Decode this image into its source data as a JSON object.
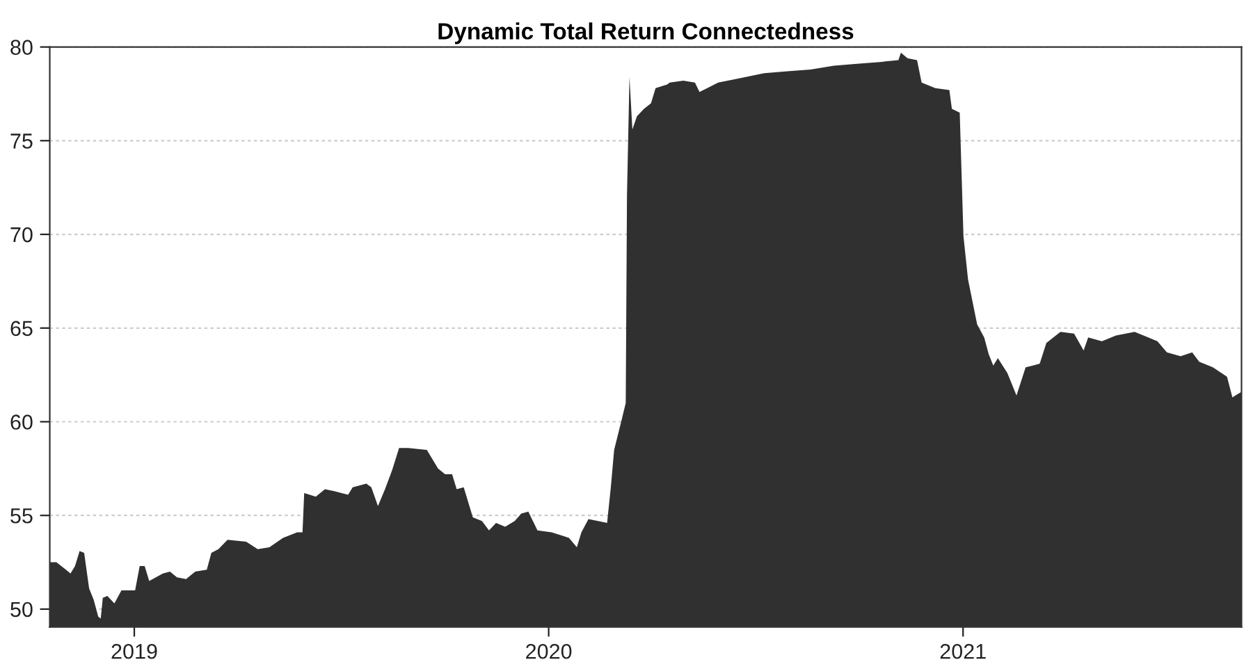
{
  "chart_data": {
    "type": "area",
    "title": "Dynamic Total Return Connectedness",
    "x": [
      2018.796,
      2018.812,
      2018.835,
      2018.846,
      2018.857,
      2018.868,
      2018.879,
      2018.891,
      2018.902,
      2018.913,
      2018.919,
      2018.924,
      2018.935,
      2018.952,
      2018.969,
      2019.002,
      2019.013,
      2019.025,
      2019.036,
      2019.052,
      2019.069,
      2019.086,
      2019.103,
      2019.125,
      2019.147,
      2019.175,
      2019.186,
      2019.203,
      2019.225,
      2019.27,
      2019.298,
      2019.326,
      2019.359,
      2019.393,
      2019.406,
      2019.41,
      2019.438,
      2019.46,
      2019.482,
      2019.516,
      2019.527,
      2019.56,
      2019.572,
      2019.588,
      2019.605,
      2019.622,
      2019.639,
      2019.661,
      2019.706,
      2019.733,
      2019.75,
      2019.767,
      2019.778,
      2019.795,
      2019.817,
      2019.839,
      2019.856,
      2019.873,
      2019.895,
      2019.918,
      2019.934,
      2019.951,
      2019.973,
      2020.007,
      2020.035,
      2020.049,
      2020.068,
      2020.079,
      2020.096,
      2020.119,
      2020.141,
      2020.15,
      2020.158,
      2020.175,
      2020.186,
      2020.189,
      2020.195,
      2020.202,
      2020.213,
      2020.23,
      2020.247,
      2020.258,
      2020.286,
      2020.292,
      2020.325,
      2020.353,
      2020.364,
      2020.409,
      2020.453,
      2020.52,
      2020.576,
      2020.632,
      2020.688,
      2020.744,
      2020.799,
      2020.844,
      2020.85,
      2020.866,
      2020.889,
      2020.9,
      2020.933,
      2020.967,
      2020.973,
      2020.992,
      2021.001,
      2021.012,
      2021.034,
      2021.051,
      2021.062,
      2021.073,
      2021.084,
      2021.107,
      2021.129,
      2021.151,
      2021.168,
      2021.185,
      2021.201,
      2021.235,
      2021.268,
      2021.291,
      2021.302,
      2021.335,
      2021.369,
      2021.414,
      2021.447,
      2021.469,
      2021.492,
      2021.525,
      2021.553,
      2021.57,
      2021.603,
      2021.637,
      2021.65,
      2021.672
    ],
    "series": [
      {
        "color": "#303030",
        "values": [
          52.5,
          52.5,
          52.1,
          51.9,
          52.3,
          53.1,
          53.0,
          51.1,
          50.5,
          49.6,
          49.5,
          50.6,
          50.7,
          50.3,
          51.0,
          51.0,
          52.3,
          52.3,
          51.5,
          51.7,
          51.9,
          52.0,
          51.7,
          51.6,
          52.0,
          52.1,
          53.0,
          53.2,
          53.7,
          53.6,
          53.2,
          53.3,
          53.8,
          54.1,
          54.1,
          56.2,
          56.0,
          56.4,
          56.3,
          56.1,
          56.5,
          56.7,
          56.5,
          55.5,
          56.4,
          57.4,
          58.6,
          58.6,
          58.5,
          57.5,
          57.2,
          57.2,
          56.4,
          56.5,
          54.9,
          54.7,
          54.2,
          54.6,
          54.4,
          54.7,
          55.1,
          55.2,
          54.2,
          54.1,
          53.9,
          53.8,
          53.3,
          54.1,
          54.8,
          54.7,
          54.6,
          56.5,
          58.5,
          60.0,
          61.0,
          72.1,
          78.4,
          75.6,
          76.3,
          76.7,
          77.0,
          77.8,
          78.0,
          78.1,
          78.2,
          78.1,
          77.6,
          78.1,
          78.3,
          78.6,
          78.7,
          78.8,
          79.0,
          79.1,
          79.2,
          79.3,
          79.7,
          79.4,
          79.3,
          78.1,
          77.8,
          77.7,
          76.7,
          76.5,
          69.9,
          67.6,
          65.2,
          64.5,
          63.6,
          63.0,
          63.4,
          62.6,
          61.4,
          62.9,
          63.0,
          63.1,
          64.2,
          64.8,
          64.7,
          63.8,
          64.5,
          64.3,
          64.6,
          64.8,
          64.5,
          64.3,
          63.7,
          63.5,
          63.7,
          63.2,
          62.9,
          62.4,
          61.3,
          61.6
        ]
      }
    ],
    "xlim": [
      2018.796,
      2021.672
    ],
    "xticks": [
      2019,
      2020,
      2021
    ],
    "ylim": [
      49.05,
      80
    ],
    "yticks": [
      50,
      55,
      60,
      65,
      70,
      75,
      80
    ],
    "grid": "y"
  }
}
